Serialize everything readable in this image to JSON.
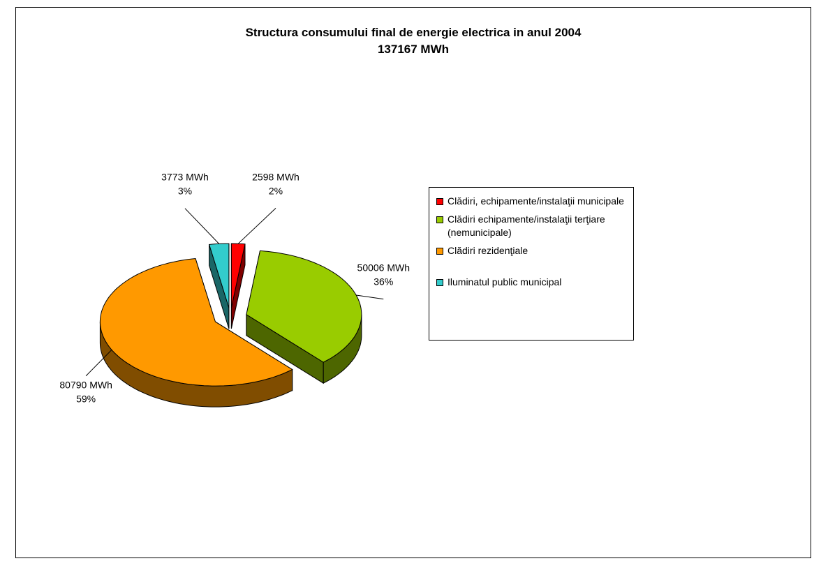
{
  "chart_data": {
    "type": "pie3d",
    "title": "Structura consumului final de energie electrica in anul 2004",
    "subtitle": "137167 MWh",
    "categories": [
      "Clădiri, echipamente/instalaţii municipale",
      "Clădiri echipamente/instalaţii terţiare (nemunicipale)",
      "Clădiri rezidenţiale",
      "Iluminatul public municipal"
    ],
    "values": [
      2598,
      50006,
      80790,
      3773
    ],
    "value_labels": [
      "2598 MWh",
      "50006 MWh",
      "80790 MWh",
      "3773 MWh"
    ],
    "percent_labels": [
      "2%",
      "36%",
      "59%",
      "3%"
    ],
    "colors": [
      "#ff0000",
      "#99cc00",
      "#ff9900",
      "#33cccc"
    ],
    "legend": "right"
  }
}
